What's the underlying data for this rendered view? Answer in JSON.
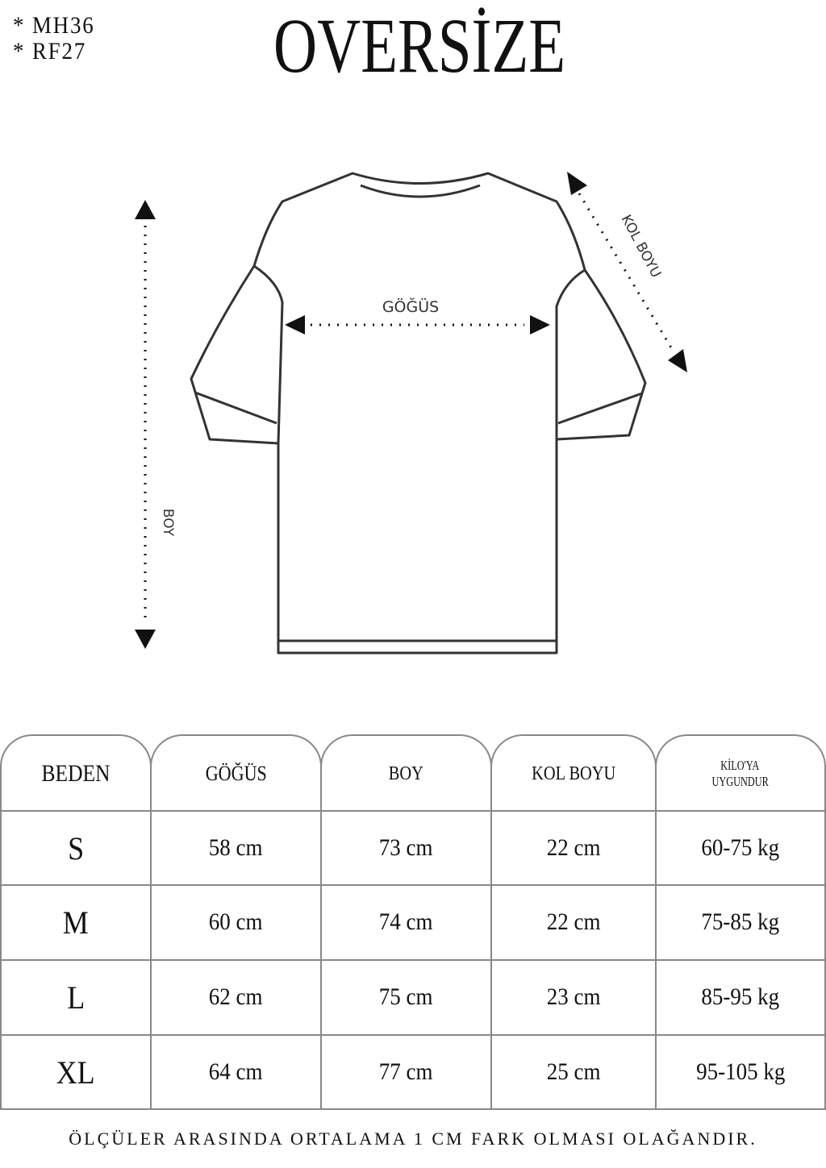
{
  "codes": [
    "* MH36",
    "* RF27"
  ],
  "title": "OVERSİZE",
  "diagram": {
    "chest_label": "GÖĞÜS",
    "length_label": "BOY",
    "sleeve_label": "KOL BOYU"
  },
  "table": {
    "headers": [
      "BEDEN",
      "GÖĞÜS",
      "BOY",
      "KOL BOYU",
      "KİLO'YA",
      "UYGUNDUR"
    ],
    "rows": [
      [
        "S",
        "58 cm",
        "73 cm",
        "22  cm",
        "60-75 kg"
      ],
      [
        "M",
        "60 cm",
        "74 cm",
        "22 cm",
        "75-85 kg"
      ],
      [
        "L",
        "62 cm",
        "75 cm",
        "23 cm",
        "85-95 kg"
      ],
      [
        "XL",
        "64 cm",
        "77 cm",
        "25 cm",
        "95-105 kg"
      ]
    ]
  },
  "footer": "ÖLÇÜLER ARASINDA ORTALAMA 1 CM FARK OLMASI OLAĞANDIR."
}
